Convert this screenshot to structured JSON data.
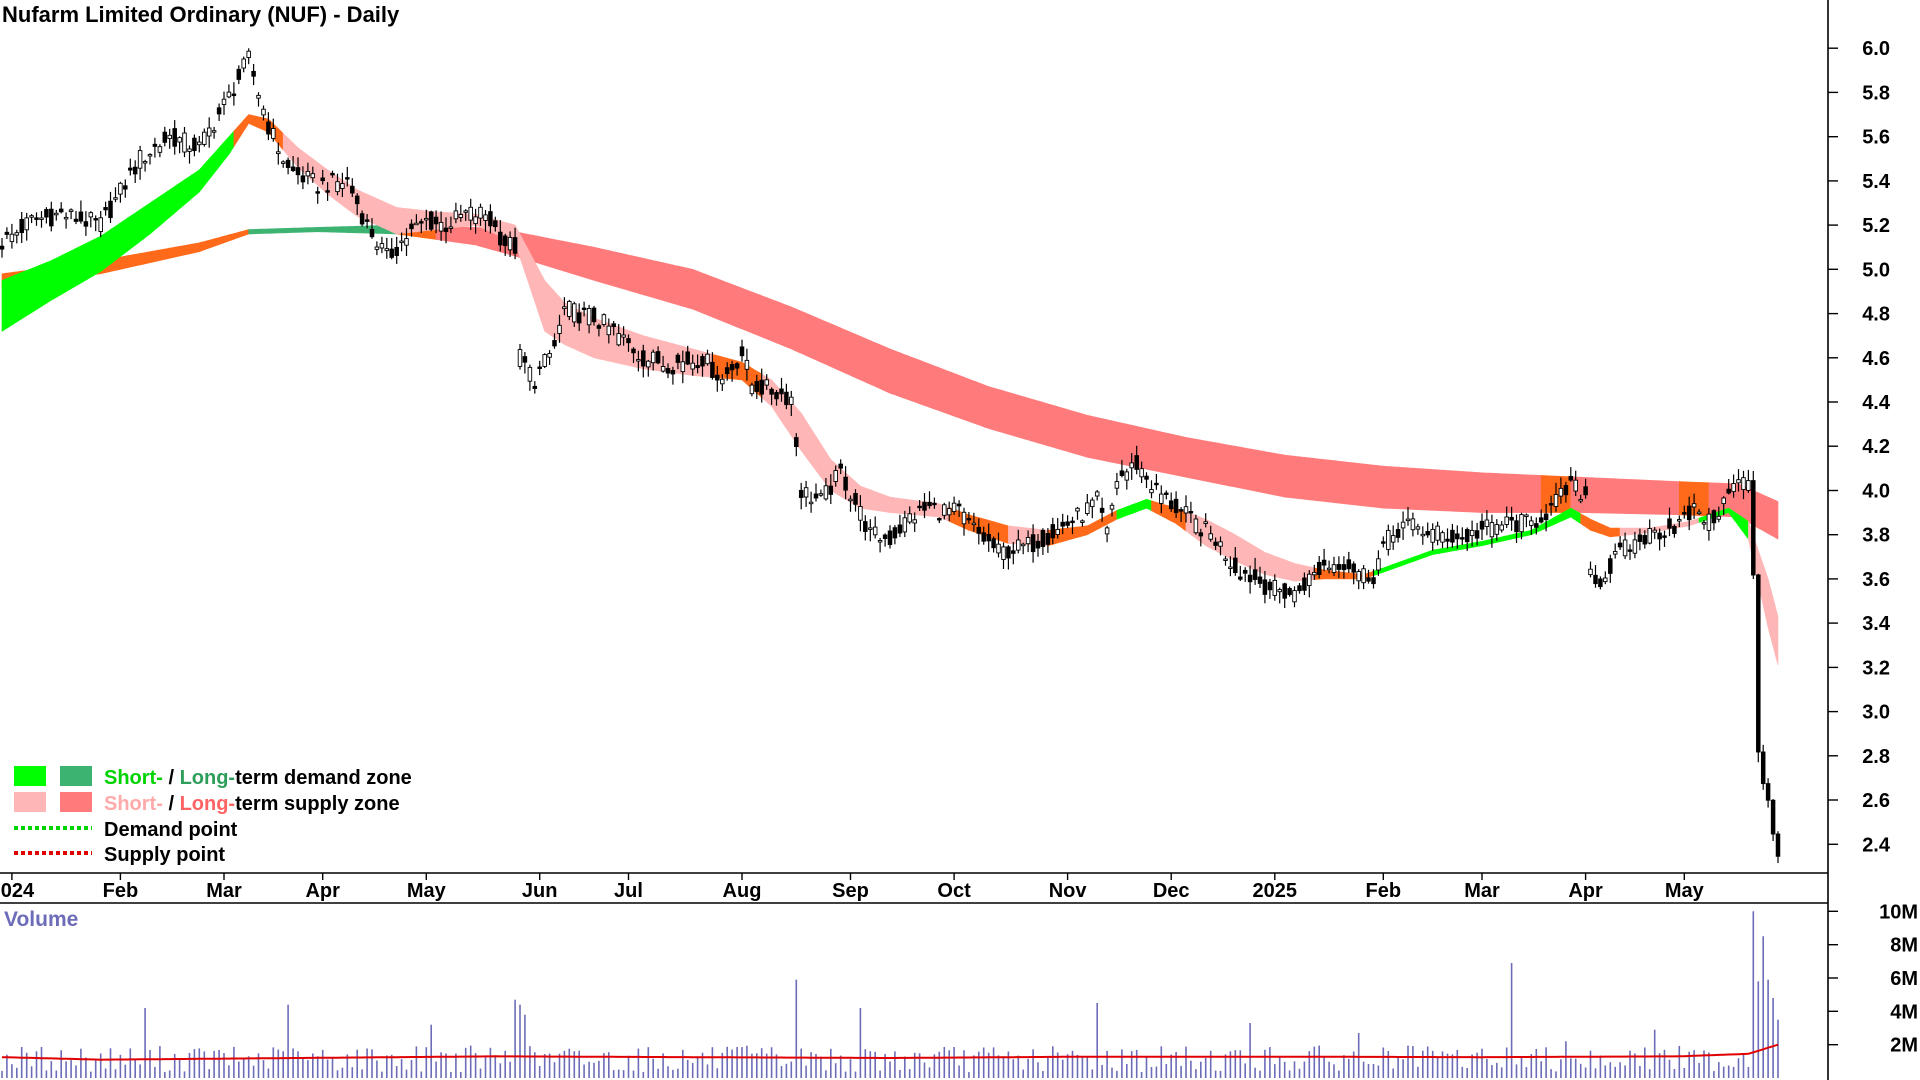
{
  "title": "Nufarm Limited Ordinary (NUF) - Daily",
  "volume_panel": {
    "label": "Volume",
    "ticks": [
      "10M",
      "8M",
      "6M",
      "4M",
      "2M"
    ],
    "tick_values": [
      10,
      8,
      6,
      4,
      2
    ],
    "unit": "M",
    "bar_color": "#6c6cb8",
    "average_line_color": "#e00000"
  },
  "legend": {
    "row1": {
      "short": "Short-",
      "sep": " / ",
      "long": "Long-",
      "rest": "term demand zone"
    },
    "row2": {
      "short": "Short-",
      "sep": " / ",
      "long": "Long-",
      "rest": "term supply zone"
    },
    "row3": "Demand point",
    "row4": "Supply point"
  },
  "colors": {
    "short_demand": "#00ff00",
    "long_demand": "#3cb371",
    "short_supply": "#ffb6b6",
    "long_supply": "#ff7b7b",
    "transition": "#ff6a1a",
    "demand_text": "#00d400",
    "long_demand_text": "#2e9e5b",
    "supply_text": "#ffaaaa",
    "long_supply_text": "#ff6464",
    "candle": "#000000"
  },
  "chart_data": {
    "type": "candlestick",
    "title": "Nufarm Limited Ordinary (NUF) - Daily",
    "y_axis": {
      "ticks": [
        "6.0",
        "5.8",
        "5.6",
        "5.4",
        "5.2",
        "5.0",
        "4.8",
        "4.6",
        "4.4",
        "4.2",
        "4.0",
        "3.8",
        "3.6",
        "3.4",
        "3.2",
        "3.0",
        "2.8",
        "2.6",
        "2.4"
      ],
      "tick_values": [
        6.0,
        5.8,
        5.6,
        5.4,
        5.2,
        5.0,
        4.8,
        4.6,
        4.4,
        4.2,
        4.0,
        3.8,
        3.6,
        3.4,
        3.2,
        3.0,
        2.8,
        2.6,
        2.4
      ],
      "range": [
        2.27,
        6.2
      ],
      "position": "right"
    },
    "x_axis": {
      "labels": [
        "2024",
        "Feb",
        "Mar",
        "Apr",
        "May",
        "Jun",
        "Jul",
        "Aug",
        "Sep",
        "Oct",
        "Nov",
        "Dec",
        "2025",
        "Feb",
        "Mar",
        "Apr",
        "May"
      ],
      "label_day_index": [
        2,
        24,
        45,
        65,
        86,
        109,
        127,
        150,
        172,
        193,
        216,
        237,
        258,
        280,
        300,
        321,
        341
      ],
      "total_days": 360
    },
    "price_anchors": [
      [
        0,
        5.12
      ],
      [
        6,
        5.22
      ],
      [
        12,
        5.25
      ],
      [
        20,
        5.2
      ],
      [
        28,
        5.5
      ],
      [
        34,
        5.6
      ],
      [
        40,
        5.55
      ],
      [
        46,
        5.78
      ],
      [
        50,
        5.95
      ],
      [
        54,
        5.65
      ],
      [
        58,
        5.45
      ],
      [
        64,
        5.38
      ],
      [
        70,
        5.4
      ],
      [
        74,
        5.2
      ],
      [
        78,
        5.05
      ],
      [
        82,
        5.15
      ],
      [
        86,
        5.22
      ],
      [
        90,
        5.2
      ],
      [
        94,
        5.25
      ],
      [
        98,
        5.25
      ],
      [
        102,
        5.12
      ],
      [
        104,
        5.1
      ],
      [
        105,
        4.6
      ],
      [
        108,
        4.5
      ],
      [
        112,
        4.65
      ],
      [
        114,
        4.82
      ],
      [
        120,
        4.78
      ],
      [
        124,
        4.72
      ],
      [
        130,
        4.6
      ],
      [
        136,
        4.57
      ],
      [
        142,
        4.6
      ],
      [
        146,
        4.5
      ],
      [
        150,
        4.62
      ],
      [
        152,
        4.48
      ],
      [
        156,
        4.45
      ],
      [
        160,
        4.42
      ],
      [
        162,
        4.0
      ],
      [
        166,
        3.95
      ],
      [
        170,
        4.08
      ],
      [
        174,
        3.9
      ],
      [
        176,
        3.8
      ],
      [
        180,
        3.78
      ],
      [
        184,
        3.88
      ],
      [
        188,
        3.92
      ],
      [
        194,
        3.9
      ],
      [
        198,
        3.8
      ],
      [
        202,
        3.72
      ],
      [
        208,
        3.75
      ],
      [
        214,
        3.82
      ],
      [
        218,
        3.88
      ],
      [
        222,
        3.95
      ],
      [
        224,
        3.8
      ],
      [
        226,
        4.05
      ],
      [
        230,
        4.12
      ],
      [
        234,
        4.0
      ],
      [
        238,
        3.92
      ],
      [
        242,
        3.85
      ],
      [
        246,
        3.78
      ],
      [
        250,
        3.65
      ],
      [
        254,
        3.6
      ],
      [
        258,
        3.55
      ],
      [
        262,
        3.53
      ],
      [
        264,
        3.58
      ],
      [
        268,
        3.66
      ],
      [
        272,
        3.68
      ],
      [
        276,
        3.62
      ],
      [
        278,
        3.62
      ],
      [
        280,
        3.75
      ],
      [
        284,
        3.85
      ],
      [
        288,
        3.82
      ],
      [
        292,
        3.8
      ],
      [
        296,
        3.78
      ],
      [
        300,
        3.82
      ],
      [
        304,
        3.85
      ],
      [
        310,
        3.85
      ],
      [
        314,
        3.92
      ],
      [
        318,
        4.02
      ],
      [
        321,
        3.98
      ],
      [
        322,
        3.65
      ],
      [
        324,
        3.58
      ],
      [
        328,
        3.72
      ],
      [
        334,
        3.8
      ],
      [
        340,
        3.85
      ],
      [
        344,
        3.92
      ],
      [
        346,
        3.85
      ],
      [
        350,
        3.98
      ],
      [
        352,
        4.05
      ],
      [
        354,
        4.02
      ],
      [
        355,
        3.62
      ],
      [
        356,
        2.82
      ],
      [
        357,
        2.68
      ],
      [
        358,
        2.6
      ],
      [
        359,
        2.45
      ],
      [
        360,
        2.35
      ]
    ],
    "short_term_zone": {
      "upper": [
        [
          0,
          4.95
        ],
        [
          10,
          5.04
        ],
        [
          20,
          5.15
        ],
        [
          30,
          5.3
        ],
        [
          40,
          5.45
        ],
        [
          46,
          5.6
        ],
        [
          50,
          5.7
        ],
        [
          54,
          5.68
        ],
        [
          60,
          5.55
        ],
        [
          66,
          5.45
        ],
        [
          72,
          5.36
        ],
        [
          80,
          5.28
        ],
        [
          88,
          5.26
        ],
        [
          96,
          5.25
        ],
        [
          104,
          5.2
        ],
        [
          110,
          4.95
        ],
        [
          114,
          4.85
        ],
        [
          120,
          4.78
        ],
        [
          130,
          4.7
        ],
        [
          140,
          4.64
        ],
        [
          150,
          4.58
        ],
        [
          156,
          4.5
        ],
        [
          162,
          4.35
        ],
        [
          168,
          4.14
        ],
        [
          174,
          4.02
        ],
        [
          180,
          3.97
        ],
        [
          190,
          3.94
        ],
        [
          196,
          3.89
        ],
        [
          204,
          3.84
        ],
        [
          212,
          3.82
        ],
        [
          220,
          3.84
        ],
        [
          226,
          3.91
        ],
        [
          232,
          3.96
        ],
        [
          238,
          3.92
        ],
        [
          244,
          3.87
        ],
        [
          250,
          3.8
        ],
        [
          256,
          3.72
        ],
        [
          262,
          3.67
        ],
        [
          268,
          3.64
        ],
        [
          276,
          3.62
        ],
        [
          280,
          3.65
        ],
        [
          290,
          3.73
        ],
        [
          300,
          3.77
        ],
        [
          310,
          3.82
        ],
        [
          318,
          3.92
        ],
        [
          322,
          3.87
        ],
        [
          326,
          3.83
        ],
        [
          334,
          3.83
        ],
        [
          342,
          3.86
        ],
        [
          350,
          3.92
        ],
        [
          354,
          3.86
        ],
        [
          358,
          3.6
        ],
        [
          360,
          3.43
        ]
      ],
      "lower": [
        [
          0,
          4.72
        ],
        [
          10,
          4.86
        ],
        [
          20,
          4.99
        ],
        [
          30,
          5.16
        ],
        [
          40,
          5.35
        ],
        [
          46,
          5.52
        ],
        [
          50,
          5.66
        ],
        [
          54,
          5.62
        ],
        [
          60,
          5.46
        ],
        [
          66,
          5.34
        ],
        [
          72,
          5.24
        ],
        [
          80,
          5.16
        ],
        [
          88,
          5.18
        ],
        [
          96,
          5.2
        ],
        [
          104,
          5.12
        ],
        [
          110,
          4.72
        ],
        [
          114,
          4.66
        ],
        [
          120,
          4.6
        ],
        [
          130,
          4.55
        ],
        [
          140,
          4.52
        ],
        [
          150,
          4.5
        ],
        [
          156,
          4.38
        ],
        [
          162,
          4.18
        ],
        [
          168,
          4.0
        ],
        [
          174,
          3.92
        ],
        [
          180,
          3.9
        ],
        [
          190,
          3.88
        ],
        [
          196,
          3.82
        ],
        [
          204,
          3.76
        ],
        [
          212,
          3.75
        ],
        [
          220,
          3.8
        ],
        [
          226,
          3.87
        ],
        [
          232,
          3.92
        ],
        [
          238,
          3.85
        ],
        [
          244,
          3.75
        ],
        [
          250,
          3.68
        ],
        [
          256,
          3.62
        ],
        [
          262,
          3.59
        ],
        [
          268,
          3.6
        ],
        [
          276,
          3.6
        ],
        [
          280,
          3.63
        ],
        [
          290,
          3.71
        ],
        [
          300,
          3.75
        ],
        [
          310,
          3.8
        ],
        [
          318,
          3.88
        ],
        [
          322,
          3.82
        ],
        [
          326,
          3.79
        ],
        [
          334,
          3.81
        ],
        [
          342,
          3.84
        ],
        [
          350,
          3.9
        ],
        [
          354,
          3.78
        ],
        [
          358,
          3.38
        ],
        [
          360,
          3.21
        ]
      ],
      "bands": [
        {
          "from": 0,
          "to": 47,
          "state": "demand"
        },
        {
          "from": 47,
          "to": 57,
          "state": "transition"
        },
        {
          "from": 57,
          "to": 104,
          "state": "supply"
        },
        {
          "from": 104,
          "to": 144,
          "state": "supply"
        },
        {
          "from": 144,
          "to": 154,
          "state": "transition"
        },
        {
          "from": 154,
          "to": 192,
          "state": "supply"
        },
        {
          "from": 192,
          "to": 204,
          "state": "transition"
        },
        {
          "from": 204,
          "to": 212,
          "state": "supply"
        },
        {
          "from": 212,
          "to": 226,
          "state": "transition"
        },
        {
          "from": 226,
          "to": 233,
          "state": "demand"
        },
        {
          "from": 233,
          "to": 240,
          "state": "transition"
        },
        {
          "from": 240,
          "to": 266,
          "state": "supply"
        },
        {
          "from": 266,
          "to": 278,
          "state": "transition"
        },
        {
          "from": 278,
          "to": 320,
          "state": "demand"
        },
        {
          "from": 320,
          "to": 328,
          "state": "transition"
        },
        {
          "from": 328,
          "to": 344,
          "state": "supply"
        },
        {
          "from": 344,
          "to": 354,
          "state": "demand"
        },
        {
          "from": 354,
          "to": 360,
          "state": "supply"
        }
      ]
    },
    "long_term_zone": {
      "upper": [
        [
          0,
          4.98
        ],
        [
          20,
          5.04
        ],
        [
          40,
          5.12
        ],
        [
          50,
          5.18
        ],
        [
          64,
          5.19
        ],
        [
          80,
          5.2
        ],
        [
          96,
          5.19
        ],
        [
          104,
          5.17
        ],
        [
          120,
          5.1
        ],
        [
          140,
          5.0
        ],
        [
          160,
          4.83
        ],
        [
          180,
          4.64
        ],
        [
          200,
          4.47
        ],
        [
          220,
          4.34
        ],
        [
          240,
          4.24
        ],
        [
          260,
          4.16
        ],
        [
          280,
          4.11
        ],
        [
          300,
          4.08
        ],
        [
          320,
          4.06
        ],
        [
          340,
          4.04
        ],
        [
          352,
          4.03
        ],
        [
          360,
          3.95
        ]
      ],
      "lower": [
        [
          0,
          4.92
        ],
        [
          20,
          4.98
        ],
        [
          40,
          5.08
        ],
        [
          50,
          5.16
        ],
        [
          64,
          5.17
        ],
        [
          80,
          5.16
        ],
        [
          96,
          5.11
        ],
        [
          104,
          5.06
        ],
        [
          120,
          4.95
        ],
        [
          140,
          4.82
        ],
        [
          160,
          4.64
        ],
        [
          180,
          4.44
        ],
        [
          200,
          4.28
        ],
        [
          220,
          4.15
        ],
        [
          240,
          4.06
        ],
        [
          260,
          3.97
        ],
        [
          280,
          3.92
        ],
        [
          300,
          3.9
        ],
        [
          320,
          3.9
        ],
        [
          340,
          3.89
        ],
        [
          352,
          3.88
        ],
        [
          360,
          3.78
        ]
      ],
      "bands": [
        {
          "from": 0,
          "to": 50,
          "state": "transition"
        },
        {
          "from": 50,
          "to": 80,
          "state": "demand"
        },
        {
          "from": 80,
          "to": 88,
          "state": "transition"
        },
        {
          "from": 88,
          "to": 312,
          "state": "supply"
        },
        {
          "from": 312,
          "to": 318,
          "state": "transition"
        },
        {
          "from": 318,
          "to": 340,
          "state": "supply"
        },
        {
          "from": 340,
          "to": 346,
          "state": "transition"
        },
        {
          "from": 346,
          "to": 360,
          "state": "supply"
        }
      ]
    },
    "volume": {
      "unit": "M",
      "range": [
        0,
        10.5
      ],
      "baseline_avg": 1.2,
      "spikes": [
        [
          29,
          4.2
        ],
        [
          58,
          4.4
        ],
        [
          87,
          3.2
        ],
        [
          104,
          4.7
        ],
        [
          105,
          4.4
        ],
        [
          106,
          3.8
        ],
        [
          161,
          5.9
        ],
        [
          174,
          4.2
        ],
        [
          222,
          4.5
        ],
        [
          253,
          3.3
        ],
        [
          275,
          2.7
        ],
        [
          306,
          6.9
        ],
        [
          317,
          2.2
        ],
        [
          335,
          2.9
        ],
        [
          355,
          10.0
        ],
        [
          356,
          5.8
        ],
        [
          357,
          8.5
        ],
        [
          358,
          5.9
        ],
        [
          359,
          4.8
        ],
        [
          360,
          3.5
        ]
      ],
      "avg_line": [
        [
          0,
          1.25
        ],
        [
          20,
          1.1
        ],
        [
          40,
          1.15
        ],
        [
          60,
          1.2
        ],
        [
          100,
          1.3
        ],
        [
          140,
          1.25
        ],
        [
          180,
          1.2
        ],
        [
          220,
          1.28
        ],
        [
          260,
          1.28
        ],
        [
          300,
          1.25
        ],
        [
          340,
          1.3
        ],
        [
          354,
          1.45
        ],
        [
          360,
          2.0
        ]
      ]
    }
  }
}
